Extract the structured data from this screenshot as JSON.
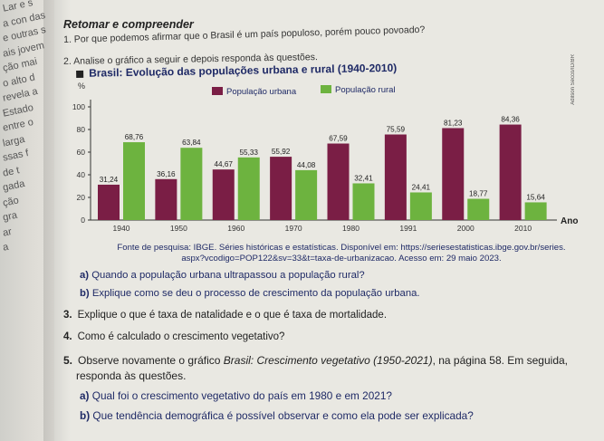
{
  "left_fragments": [
    "Lar e s",
    "a con das",
    "e outras s",
    "ais jovem",
    "ção mai",
    "o alto d",
    "revela a",
    "Estado",
    "entre o",
    "larga",
    "ssas f",
    "de t",
    "gada",
    "ção",
    "gra",
    "ar",
    "a"
  ],
  "section_title": "Retomar e compreender",
  "question1": {
    "number": "1.",
    "text": "Por que podemos afirmar que o Brasil é um país populoso, porém pouco povoado?"
  },
  "question2": {
    "number": "2.",
    "text": "Analise o gráfico a seguir e depois responda às questões."
  },
  "chart_data": {
    "type": "bar",
    "title": "Brasil: Evolução das populações urbana e rural (1940-2010)",
    "ylabel": "%",
    "xlabel": "Ano",
    "categories": [
      "1940",
      "1950",
      "1960",
      "1970",
      "1980",
      "1991",
      "2000",
      "2010"
    ],
    "series": [
      {
        "name": "População urbana",
        "color": "#7a1e45",
        "values": [
          31.24,
          36.16,
          44.67,
          55.92,
          67.59,
          75.59,
          81.23,
          84.36
        ]
      },
      {
        "name": "População rural",
        "color": "#6db33f",
        "values": [
          68.76,
          63.84,
          55.33,
          44.08,
          32.41,
          24.41,
          18.77,
          15.64
        ]
      }
    ],
    "value_labels": {
      "urbana": [
        "31,24",
        "36,16",
        "44,67",
        "55,92",
        "67,59",
        "75,59",
        "81,23",
        "84,36"
      ],
      "rural": [
        "68,76",
        "63,84",
        "55,33",
        "44,08",
        "32,41",
        "24,41",
        "18,77",
        "15,64"
      ]
    },
    "yticks": [
      "0",
      "20",
      "40",
      "60",
      "80",
      "100"
    ],
    "ylim": [
      0,
      100
    ],
    "grid": false,
    "legend_position": "top"
  },
  "credit": "Adilson Secco/ID/BR",
  "source_line1": "Fonte de pesquisa: IBGE. Séries históricas e estatísticas. Disponível em: https://seriesestatisticas.ibge.gov.br/series.",
  "source_line2": "aspx?vcodigo=POP122&sv=33&t=taxa-de-urbanizacao. Acesso em: 29 maio 2023.",
  "q2a": {
    "label": "a)",
    "text": "Quando a população urbana ultrapassou a população rural?"
  },
  "q2b": {
    "label": "b)",
    "text": "Explique como se deu o processo de crescimento da população urbana."
  },
  "question3": {
    "number": "3.",
    "text": "Explique o que é taxa de natalidade e o que é taxa de mortalidade."
  },
  "question4": {
    "number": "4.",
    "text": "Como é calculado o crescimento vegetativo?"
  },
  "question5": {
    "number": "5.",
    "text_before": "Observe novamente o gráfico ",
    "text_italic": "Brasil: Crescimento vegetativo (1950-2021)",
    "text_after": ", na página 58. Em seguida,",
    "line2": "responda às questões."
  },
  "q5a": {
    "label": "a)",
    "text": "Qual foi o crescimento vegetativo do país em 1980 e em 2021?"
  },
  "q5b": {
    "label": "b)",
    "text": "Que tendência demográfica é possível observar e como ela pode ser explicada?"
  }
}
